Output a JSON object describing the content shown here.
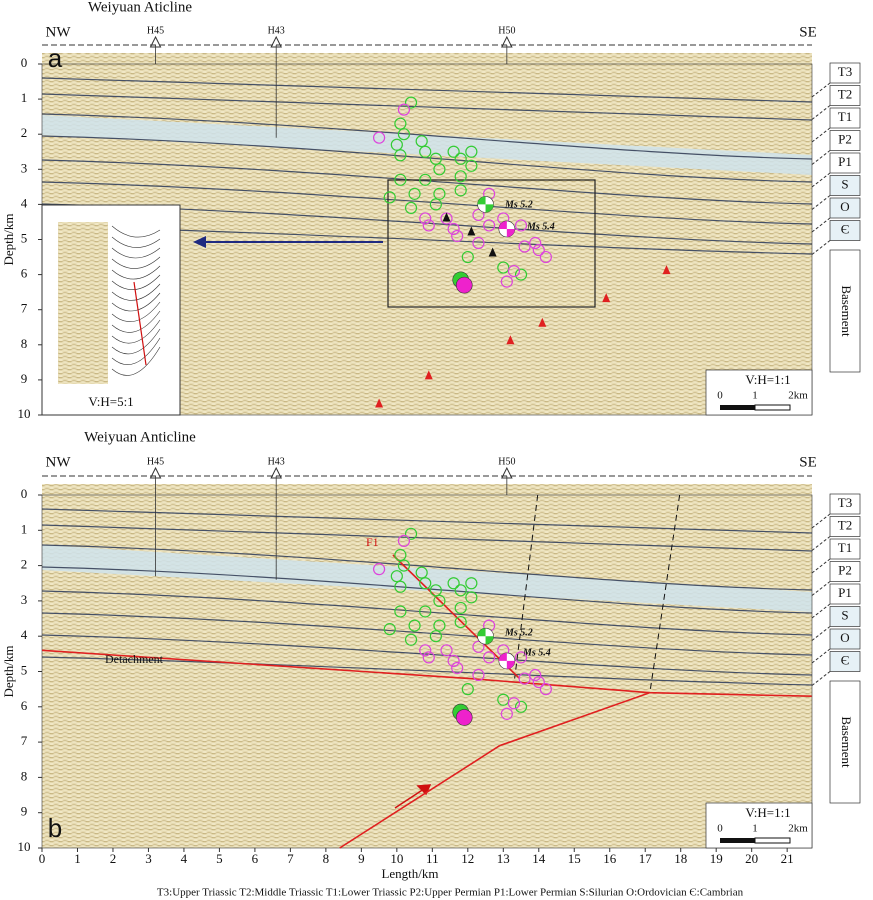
{
  "chart_data": [
    {
      "type": "scatter",
      "title": "Weiyuan Aticline",
      "panel": "a",
      "ylabel": "Depth/km",
      "left": "NW",
      "right": "SE",
      "xlim": [
        0,
        21.7
      ],
      "ylim": [
        0,
        10
      ],
      "yticks": [
        0,
        1,
        2,
        3,
        4,
        5,
        6,
        7,
        8,
        9,
        10
      ],
      "wells": [
        {
          "name": "H45",
          "x": 3.2,
          "depth": 0
        },
        {
          "name": "H43",
          "x": 6.6,
          "depth": 2.1
        },
        {
          "name": "H50",
          "x": 13.1,
          "depth": 0
        }
      ],
      "layers": [
        "T3",
        "T2",
        "T1",
        "P2",
        "P1",
        "S",
        "O",
        "Є"
      ],
      "basement": "Basement",
      "annotations": [
        "Ms 5.2",
        "Ms 5.4"
      ],
      "inset_label": "V:H=5:1",
      "scale_ratio": "V:H=1:1",
      "scale_labels": [
        "0",
        "1",
        "2km"
      ],
      "series": [
        {
          "color": "#33cc33",
          "mark": "circle",
          "x": [
            10.4,
            10.1,
            10.2,
            10.7,
            10.0,
            10.8,
            10.1,
            11.1,
            11.2,
            11.6,
            12.1,
            11.8,
            12.1,
            10.1,
            10.8,
            11.8,
            10.5,
            11.2,
            11.8,
            9.8,
            10.4,
            11.1,
            12.0,
            11.8,
            13.5,
            13.0
          ],
          "values": [
            1.1,
            1.7,
            2.0,
            2.2,
            2.3,
            2.5,
            2.6,
            2.7,
            3.0,
            2.5,
            2.5,
            2.7,
            2.9,
            3.3,
            3.3,
            3.2,
            3.7,
            3.7,
            3.6,
            3.8,
            4.1,
            4.0,
            5.5,
            6.1,
            6.0,
            5.8
          ]
        },
        {
          "color": "#dd44dd",
          "mark": "circle",
          "x": [
            10.2,
            9.5,
            10.9,
            10.8,
            11.4,
            11.7,
            12.3,
            12.6,
            13.0,
            13.5,
            13.6,
            13.9,
            14.0,
            14.2,
            13.3,
            13.1,
            12.6,
            12.3,
            11.6
          ],
          "values": [
            1.3,
            2.1,
            4.6,
            4.4,
            4.4,
            4.9,
            5.1,
            4.6,
            4.4,
            4.6,
            5.2,
            5.1,
            5.3,
            5.5,
            5.9,
            6.2,
            3.7,
            4.3,
            4.7
          ]
        },
        {
          "color": "#33cc33",
          "mark": "dot",
          "x": [
            11.8
          ],
          "values": [
            6.15
          ]
        },
        {
          "color": "#ee22cc",
          "mark": "dot",
          "x": [
            11.9
          ],
          "values": [
            6.3
          ]
        },
        {
          "color": "#33cc33",
          "mark": "beachball",
          "x": [
            12.5
          ],
          "values": [
            4.0
          ]
        },
        {
          "color": "#ee22cc",
          "mark": "beachball",
          "x": [
            13.1
          ],
          "values": [
            4.7
          ]
        },
        {
          "color": "#111111",
          "mark": "triangle",
          "x": [
            11.4,
            12.1,
            12.7
          ],
          "values": [
            4.4,
            4.8,
            5.4
          ]
        },
        {
          "color": "#e02020",
          "mark": "triangle",
          "x": [
            17.6,
            15.9,
            14.1,
            13.2,
            10.9,
            9.5
          ],
          "values": [
            5.9,
            6.7,
            7.4,
            7.9,
            8.9,
            9.7
          ]
        }
      ]
    },
    {
      "type": "scatter",
      "title": "Weiyuan Anticline",
      "panel": "b",
      "ylabel": "Depth/km",
      "xlabel": "Length/km",
      "left": "NW",
      "right": "SE",
      "xlim": [
        0,
        21.7
      ],
      "ylim": [
        0,
        10
      ],
      "yticks": [
        0,
        1,
        2,
        3,
        4,
        5,
        6,
        7,
        8,
        9,
        10
      ],
      "xticks": [
        0,
        1,
        2,
        3,
        4,
        5,
        6,
        7,
        8,
        9,
        10,
        11,
        12,
        13,
        14,
        15,
        16,
        17,
        18,
        19,
        20,
        21
      ],
      "wells": [
        {
          "name": "H45",
          "x": 3.2,
          "depth": 2.3
        },
        {
          "name": "H43",
          "x": 6.6,
          "depth": 2.4
        },
        {
          "name": "H50",
          "x": 13.1,
          "depth": 0
        }
      ],
      "layers": [
        "T3",
        "T2",
        "T1",
        "P2",
        "P1",
        "S",
        "O",
        "Є"
      ],
      "basement": "Basement",
      "annotations": [
        "Ms 5.2",
        "Ms 5.4",
        "Detachment",
        "F1"
      ],
      "scale_ratio": "V:H=1:1",
      "scale_labels": [
        "0",
        "1",
        "2km"
      ],
      "series": [
        {
          "color": "#111111",
          "mark": "dashed-line",
          "x": [
            13.97,
            13.32
          ],
          "values": [
            0,
            5.2
          ]
        },
        {
          "color": "#111111",
          "mark": "dashed-line",
          "x": [
            17.97,
            17.13
          ],
          "values": [
            0,
            5.6
          ]
        },
        {
          "color": "#e02020",
          "mark": "line",
          "x": [
            0,
            12.06,
            17.13,
            21.69
          ],
          "values": [
            4.4,
            5.2,
            5.6,
            5.7
          ]
        },
        {
          "color": "#e02020",
          "mark": "line",
          "x": [
            8.39,
            12.9,
            17.13
          ],
          "values": [
            10,
            7.1,
            5.6
          ]
        },
        {
          "color": "#e02020",
          "mark": "line",
          "x": [
            9.89,
            13.46
          ],
          "values": [
            1.7,
            5.2
          ]
        },
        {
          "color": "#33cc33",
          "mark": "circle",
          "x": [
            10.4,
            10.1,
            10.2,
            10.7,
            10.0,
            10.8,
            10.1,
            11.1,
            11.2,
            11.6,
            12.1,
            11.8,
            12.1,
            10.1,
            10.8,
            11.8,
            10.5,
            11.2,
            11.8,
            9.8,
            10.4,
            11.1,
            12.0,
            11.8,
            13.5,
            13.0
          ],
          "values": [
            1.1,
            1.7,
            2.0,
            2.2,
            2.3,
            2.5,
            2.6,
            2.7,
            3.0,
            2.5,
            2.5,
            2.7,
            2.9,
            3.3,
            3.3,
            3.2,
            3.7,
            3.7,
            3.6,
            3.8,
            4.1,
            4.0,
            5.5,
            6.1,
            6.0,
            5.8
          ]
        },
        {
          "color": "#dd44dd",
          "mark": "circle",
          "x": [
            10.2,
            9.5,
            10.9,
            10.8,
            11.4,
            11.7,
            12.3,
            12.6,
            13.0,
            13.5,
            13.6,
            13.9,
            14.0,
            14.2,
            13.3,
            13.1,
            12.6,
            12.3,
            11.6
          ],
          "values": [
            1.3,
            2.1,
            4.6,
            4.4,
            4.4,
            4.9,
            5.1,
            4.6,
            4.4,
            4.6,
            5.2,
            5.1,
            5.3,
            5.5,
            5.9,
            6.2,
            3.7,
            4.3,
            4.7
          ]
        },
        {
          "color": "#33cc33",
          "mark": "dot",
          "x": [
            11.8
          ],
          "values": [
            6.15
          ]
        },
        {
          "color": "#ee22cc",
          "mark": "dot",
          "x": [
            11.9
          ],
          "values": [
            6.3
          ]
        },
        {
          "color": "#33cc33",
          "mark": "beachball",
          "x": [
            12.5
          ],
          "values": [
            4.0
          ]
        },
        {
          "color": "#ee22cc",
          "mark": "beachball",
          "x": [
            13.1
          ],
          "values": [
            4.7
          ]
        }
      ]
    }
  ],
  "footer": "T3:Upper Triassic  T2:Middle Triassic  T1:Lower Triassic  P2:Upper Permian  P1:Lower Permian  S:Silurian  O:Ordovician  Є:Cambrian"
}
